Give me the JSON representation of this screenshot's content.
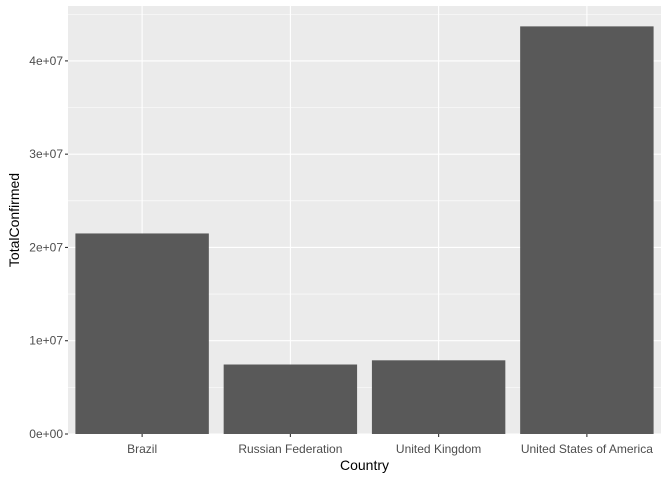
{
  "chart_data": {
    "type": "bar",
    "xlabel": "Country",
    "ylabel": "TotalConfirmed",
    "categories": [
      "Brazil",
      "Russian Federation",
      "United Kingdom",
      "United States of America"
    ],
    "values": [
      21500000,
      7450000,
      7900000,
      43700000
    ],
    "yticks": [
      0,
      10000000,
      20000000,
      30000000,
      40000000
    ],
    "ytick_labels": [
      "0e+00",
      "1e+07",
      "2e+07",
      "3e+07",
      "4e+07"
    ],
    "ylim": [
      0,
      45885000
    ],
    "grid": true,
    "legend": "none",
    "bar_color": "#595959",
    "panel_color": "#ebebeb"
  }
}
